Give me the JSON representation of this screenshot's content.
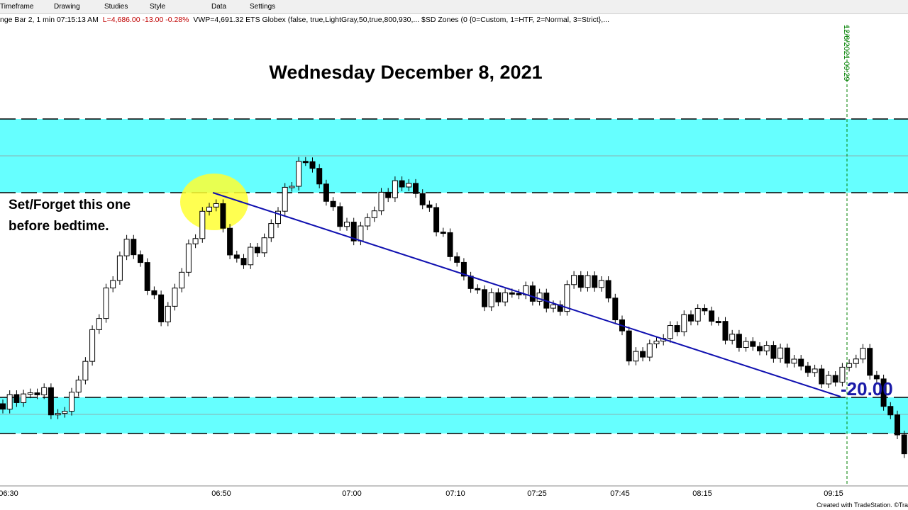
{
  "toolbar": {
    "items": [
      "Timeframe",
      "Drawing",
      "Studies",
      "Style",
      "Data",
      "Settings"
    ]
  },
  "status": {
    "symbol": "nge Bar 2, 1 min  07:15:13 AM",
    "last": "L=4,686.00  -13.00  -0.28%",
    "studies": "VWP=4,691.32  ETS Globex (false,  true,LightGray,50,true,800,930,...  $SD Zones (0  {0=Custom, 1=HTF, 2=Normal, 3=Strict},..."
  },
  "chart": {
    "title": "Wednesday December 8, 2021",
    "annotation": [
      "Set/Forget this one",
      "before bedtime."
    ],
    "target_label": "-20.00",
    "session_marker": "12/8/2021 09:29",
    "time_labels": [
      "06:30",
      "06:50",
      "07:00",
      "07:10",
      "07:25",
      "07:45",
      "08:15",
      "09:15"
    ]
  },
  "footer": "Created with TradeStation. ©Tra"
}
